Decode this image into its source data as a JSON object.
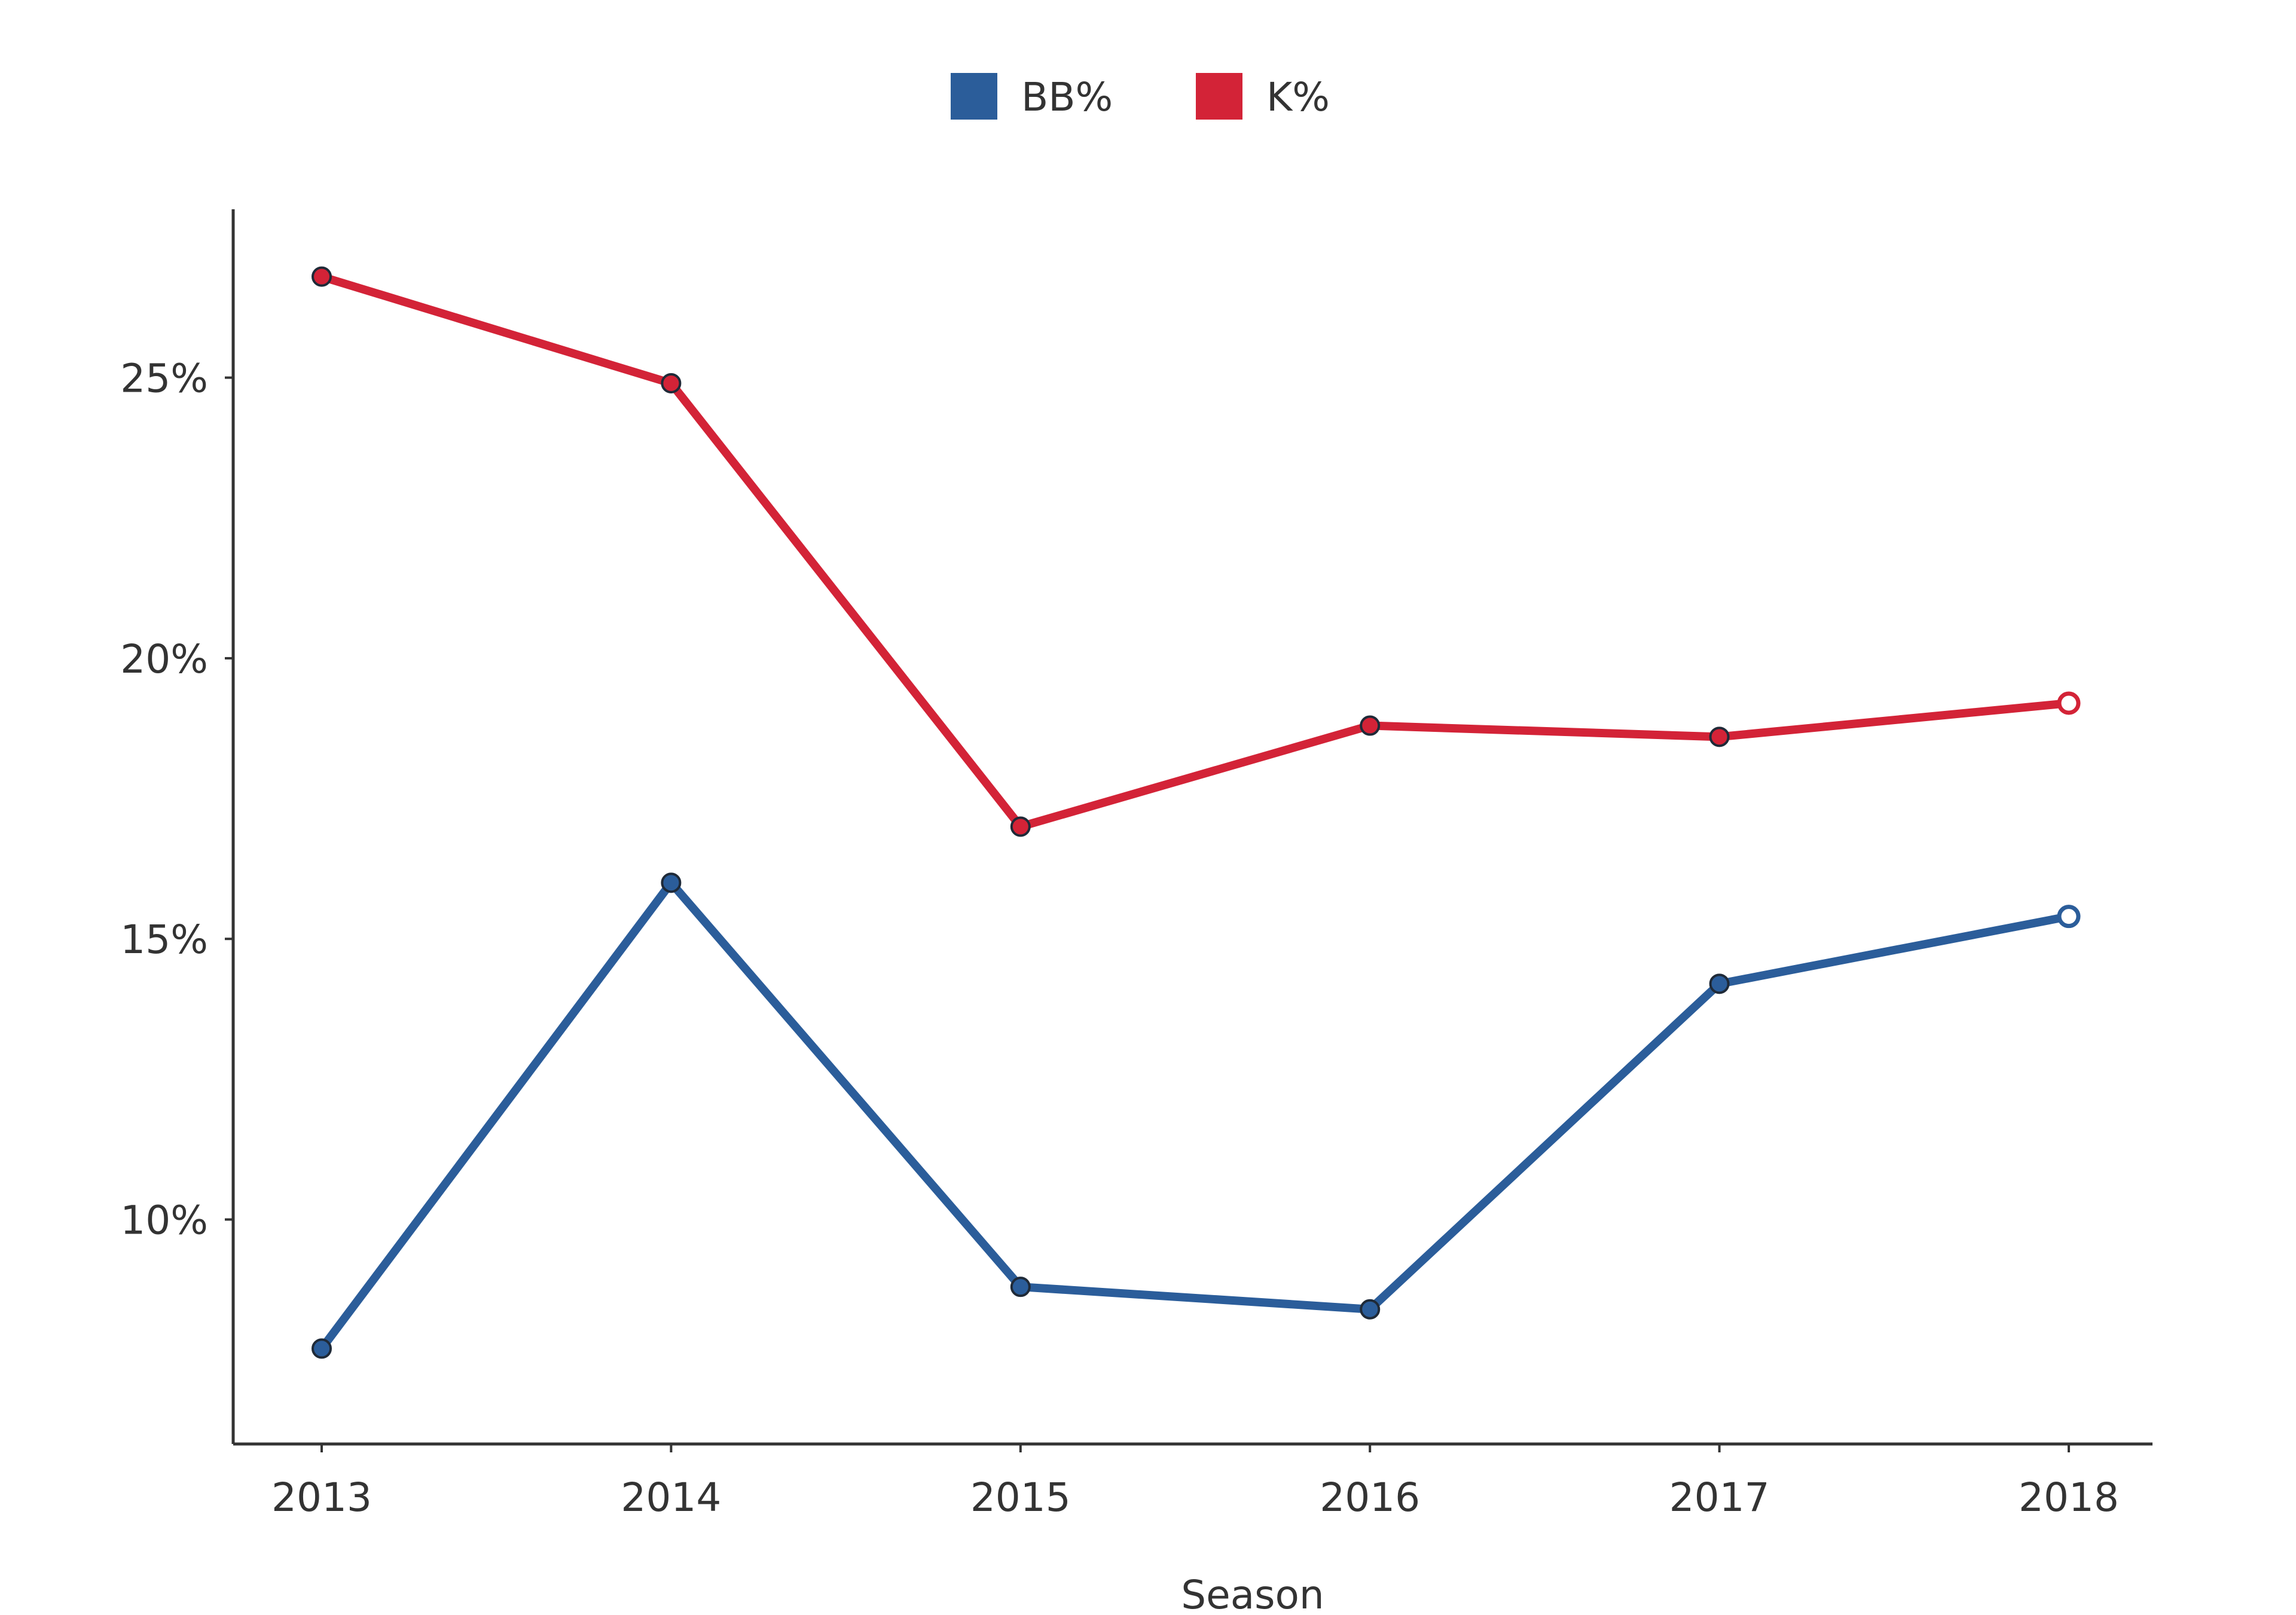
{
  "chart_data": {
    "type": "line",
    "title": "",
    "xlabel": "Season",
    "ylabel": "",
    "categories": [
      "2013",
      "2014",
      "2015",
      "2016",
      "2017",
      "2018"
    ],
    "ylim": [
      6,
      28
    ],
    "yticks": [
      10,
      15,
      20,
      25
    ],
    "ytick_labels": [
      "10%",
      "15%",
      "20%",
      "25%"
    ],
    "grid": false,
    "legend": {
      "position": "top-center",
      "items": [
        {
          "label": "BB%",
          "color": "#2b5d9a"
        },
        {
          "label": "K%",
          "color": "#d32337"
        }
      ]
    },
    "series": [
      {
        "name": "BB%",
        "color": "#2b5d9a",
        "values": [
          7.7,
          16.0,
          8.8,
          8.4,
          14.2,
          15.4
        ],
        "last_point_hollow": true
      },
      {
        "name": "K%",
        "color": "#d32337",
        "values": [
          26.8,
          24.9,
          17.0,
          18.8,
          18.6,
          19.2
        ],
        "last_point_hollow": true
      }
    ]
  }
}
